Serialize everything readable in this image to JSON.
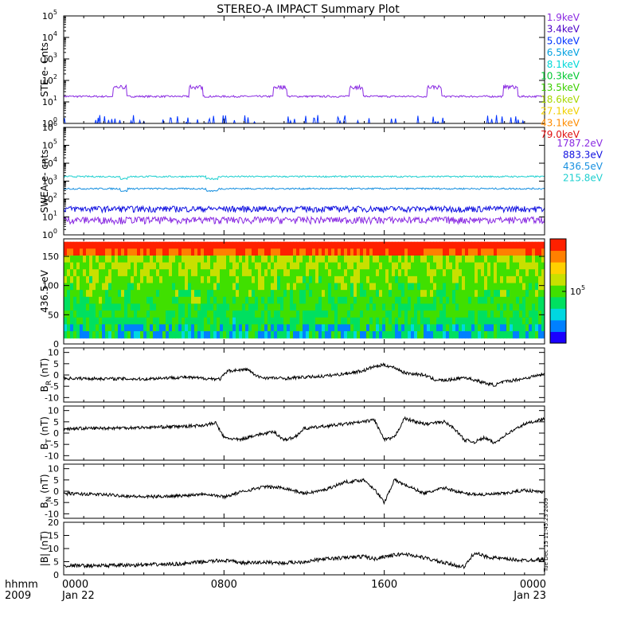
{
  "title": "STEREO-A IMPACT Summary Plot",
  "colorbar": {
    "tick_label": "10",
    "tick_exp": "5",
    "colors": [
      "#1a00ff",
      "#0080ff",
      "#00d8e0",
      "#00e060",
      "#40e000",
      "#c8e000",
      "#ffd000",
      "#ff8000",
      "#ff2000"
    ]
  },
  "time_axis": {
    "row_label_top": "hhmm",
    "row_label_bottom": "2009",
    "range_hours": [
      0,
      24
    ],
    "ticks": [
      {
        "hour": 0,
        "label": "0000",
        "sub": "Jan 22"
      },
      {
        "hour": 8,
        "label": "0800",
        "sub": ""
      },
      {
        "hour": 16,
        "label": "1600",
        "sub": ""
      },
      {
        "hour": 24,
        "label": "0000",
        "sub": "Jan 23"
      }
    ]
  },
  "side_stamp": "Tue Dec 15 11:45:23 2009",
  "legend_ste": [
    {
      "label": "1.9keV",
      "color": "#8a2be2"
    },
    {
      "label": "3.4keV",
      "color": "#4b00c8"
    },
    {
      "label": "5.0keV",
      "color": "#0033ff"
    },
    {
      "label": "6.5keV",
      "color": "#00a0e0"
    },
    {
      "label": "8.1keV",
      "color": "#00d8d8"
    },
    {
      "label": "10.3keV",
      "color": "#00c830"
    },
    {
      "label": "13.5keV",
      "color": "#3ccf00"
    },
    {
      "label": "18.6keV",
      "color": "#a8d800"
    },
    {
      "label": "27.1keV",
      "color": "#f0d000"
    },
    {
      "label": "43.1keV",
      "color": "#ff8c00"
    },
    {
      "label": "79.0keV",
      "color": "#e01010"
    }
  ],
  "legend_swea": [
    {
      "label": "1787.2eV",
      "color": "#8a2be2"
    },
    {
      "label": "883.3eV",
      "color": "#1010e0"
    },
    {
      "label": "436.5eV",
      "color": "#1890e0"
    },
    {
      "label": "215.8eV",
      "color": "#20d0d0"
    }
  ],
  "chart_data": [
    {
      "type": "line",
      "ylabel": "STE e- Cnts",
      "yscale": "log",
      "ylim": [
        1,
        100000
      ],
      "yticks": [
        {
          "b": "10",
          "e": "0"
        },
        {
          "b": "10",
          "e": "1"
        },
        {
          "b": "10",
          "e": "2"
        },
        {
          "b": "10",
          "e": "3"
        },
        {
          "b": "10",
          "e": "4"
        },
        {
          "b": "10",
          "e": "5"
        }
      ],
      "series": [
        {
          "color": "#8a2be2",
          "base": 18,
          "spikes_hours": [
            2.8,
            10.8,
            18.5,
            22.3,
            6.6,
            14.6
          ],
          "spike_value": 55
        },
        {
          "color": "#0033ff",
          "base": 1,
          "noise_to": 2.5
        }
      ]
    },
    {
      "type": "line",
      "ylabel": "SWEA e- cnts",
      "yscale": "log",
      "ylim": [
        1,
        1000000
      ],
      "yticks": [
        {
          "b": "10",
          "e": "0"
        },
        {
          "b": "10",
          "e": "1"
        },
        {
          "b": "10",
          "e": "2"
        },
        {
          "b": "10",
          "e": "3"
        },
        {
          "b": "10",
          "e": "4"
        },
        {
          "b": "10",
          "e": "5"
        },
        {
          "b": "10",
          "e": "6"
        }
      ],
      "series": [
        {
          "color": "#20d0d0",
          "base": 1800
        },
        {
          "color": "#1890e0",
          "base": 380
        },
        {
          "color": "#1010e0",
          "base": 18,
          "band_to": 40
        },
        {
          "color": "#8a2be2",
          "base": 4,
          "band_to": 10
        }
      ]
    },
    {
      "type": "heatmap",
      "ylabel": "436.5 eV",
      "ylim": [
        0,
        180
      ],
      "yticks": [
        "0",
        "50",
        "100",
        "150"
      ],
      "y_range_data": [
        10,
        175
      ]
    },
    {
      "type": "line",
      "ylabel": "B",
      "ysub": "R",
      "yunit": "(nT)",
      "ylim": [
        -12,
        12
      ],
      "yticks": [
        "-10",
        "-5",
        "0",
        "5",
        "10"
      ],
      "points": [
        [
          0,
          -1.5
        ],
        [
          2,
          -1.6
        ],
        [
          4,
          -1.8
        ],
        [
          5,
          -1.3
        ],
        [
          6,
          -1.0
        ],
        [
          7,
          -1.5
        ],
        [
          7.8,
          -1.8
        ],
        [
          8.2,
          1.8
        ],
        [
          9.2,
          2.5
        ],
        [
          9.6,
          -0.5
        ],
        [
          10,
          -1.2
        ],
        [
          11,
          -1.5
        ],
        [
          12,
          -1.0
        ],
        [
          13,
          -0.5
        ],
        [
          14,
          0.5
        ],
        [
          15,
          2.0
        ],
        [
          15.4,
          3.5
        ],
        [
          16,
          4.5
        ],
        [
          16.6,
          3.0
        ],
        [
          17,
          1.0
        ],
        [
          18,
          0.0
        ],
        [
          18.5,
          -2.0
        ],
        [
          19,
          -2.5
        ],
        [
          19.5,
          -1.8
        ],
        [
          20,
          -1.0
        ],
        [
          21,
          -3.5
        ],
        [
          21.5,
          -4.5
        ],
        [
          22,
          -3.0
        ],
        [
          23,
          -1.5
        ],
        [
          24,
          0.5
        ]
      ]
    },
    {
      "type": "line",
      "ylabel": "B",
      "ysub": "T",
      "yunit": "(nT)",
      "ylim": [
        -12,
        12
      ],
      "yticks": [
        "-10",
        "-5",
        "0",
        "5",
        "10"
      ],
      "points": [
        [
          0,
          2.0
        ],
        [
          2,
          2.2
        ],
        [
          4,
          2.5
        ],
        [
          6,
          3.0
        ],
        [
          7,
          3.5
        ],
        [
          7.6,
          4.5
        ],
        [
          8,
          -2.0
        ],
        [
          8.8,
          -3.0
        ],
        [
          9.5,
          -1.0
        ],
        [
          10.5,
          0.5
        ],
        [
          11,
          -3.0
        ],
        [
          11.5,
          -2.0
        ],
        [
          12,
          2.0
        ],
        [
          13,
          3.0
        ],
        [
          14,
          4.0
        ],
        [
          15,
          5.0
        ],
        [
          15.5,
          6.0
        ],
        [
          16,
          -3.0
        ],
        [
          16.5,
          -2.0
        ],
        [
          17,
          6.5
        ],
        [
          18,
          4.0
        ],
        [
          19,
          5.0
        ],
        [
          19.5,
          2.0
        ],
        [
          20,
          -3.0
        ],
        [
          20.5,
          -4.0
        ],
        [
          21,
          -2.0
        ],
        [
          21.5,
          -4.5
        ],
        [
          22,
          -1.0
        ],
        [
          23,
          4.0
        ],
        [
          24,
          6.5
        ]
      ]
    },
    {
      "type": "line",
      "ylabel": "B",
      "ysub": "N",
      "yunit": "(nT)",
      "ylim": [
        -12,
        12
      ],
      "yticks": [
        "-10",
        "-5",
        "0",
        "5",
        "10"
      ],
      "points": [
        [
          0,
          -1.0
        ],
        [
          2,
          -1.5
        ],
        [
          4,
          -2.5
        ],
        [
          6,
          -2.0
        ],
        [
          7,
          -1.0
        ],
        [
          8,
          -2.5
        ],
        [
          9,
          0.0
        ],
        [
          10,
          2.0
        ],
        [
          11,
          1.5
        ],
        [
          12,
          -1.0
        ],
        [
          13,
          0.5
        ],
        [
          14,
          4.0
        ],
        [
          15,
          5.0
        ],
        [
          15.5,
          1.0
        ],
        [
          16,
          -5.0
        ],
        [
          16.5,
          5.0
        ],
        [
          17,
          3.0
        ],
        [
          18,
          -1.0
        ],
        [
          19,
          1.5
        ],
        [
          20,
          -1.0
        ],
        [
          21,
          -1.5
        ],
        [
          22,
          -1.0
        ],
        [
          23,
          0.5
        ],
        [
          24,
          -0.5
        ]
      ]
    },
    {
      "type": "line",
      "ylabel": "|B|",
      "yunit": "(nT)",
      "ylim": [
        0,
        20
      ],
      "yticks": [
        "0",
        "5",
        "10",
        "15",
        "20"
      ],
      "points": [
        [
          0,
          3.5
        ],
        [
          2,
          3.5
        ],
        [
          4,
          3.8
        ],
        [
          6,
          4.2
        ],
        [
          7,
          5.0
        ],
        [
          8,
          5.5
        ],
        [
          9,
          4.5
        ],
        [
          10,
          4.8
        ],
        [
          11,
          4.5
        ],
        [
          12,
          5.0
        ],
        [
          13,
          6.0
        ],
        [
          14,
          6.5
        ],
        [
          15,
          7.0
        ],
        [
          15.5,
          6.0
        ],
        [
          16,
          7.0
        ],
        [
          17,
          8.0
        ],
        [
          18,
          6.5
        ],
        [
          19,
          4.5
        ],
        [
          20,
          3.0
        ],
        [
          20.5,
          8.5
        ],
        [
          21,
          7.0
        ],
        [
          22,
          6.0
        ],
        [
          23,
          5.5
        ],
        [
          24,
          6.0
        ]
      ]
    }
  ]
}
